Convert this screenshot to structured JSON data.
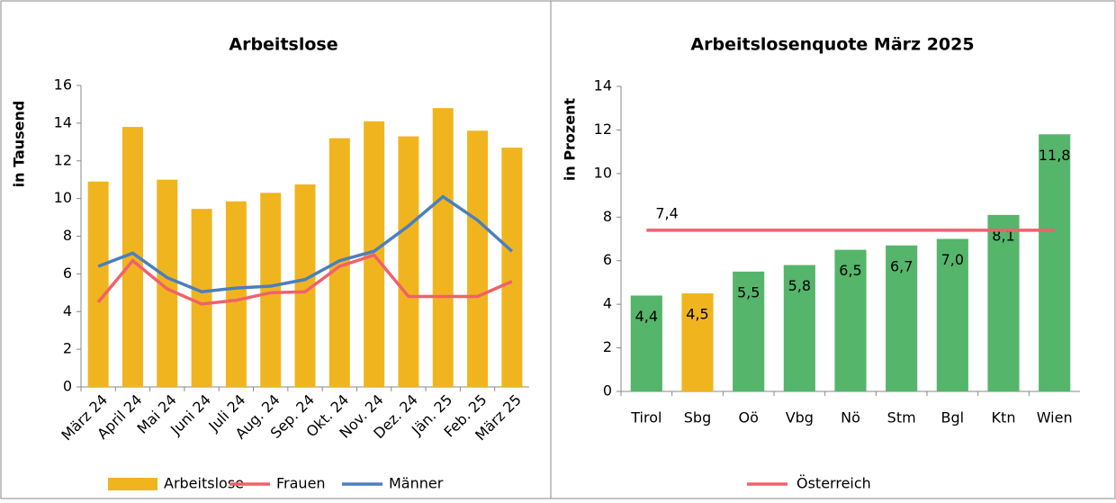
{
  "chart_data": [
    {
      "type": "bar",
      "title": "Arbeitslose",
      "y_label": "in Tausend",
      "categories": [
        "März 24",
        "April 24",
        "Mai 24",
        "Juni 24",
        "Juli 24",
        "Aug. 24",
        "Sep. 24",
        "Okt. 24",
        "Nov. 24",
        "Dez. 24",
        "Jän. 25",
        "Feb. 25",
        "März 25"
      ],
      "series": [
        {
          "name": "Arbeitslose",
          "type": "bar",
          "color": "#f0b51e",
          "values": [
            10.9,
            13.8,
            11.0,
            9.45,
            9.85,
            10.3,
            10.75,
            13.2,
            14.1,
            13.3,
            14.8,
            13.6,
            12.7
          ]
        },
        {
          "name": "Frauen",
          "type": "line",
          "color": "#f0616b",
          "values": [
            4.5,
            6.7,
            5.2,
            4.4,
            4.6,
            5.0,
            5.05,
            6.4,
            7.0,
            4.8,
            4.8,
            4.8,
            5.6
          ]
        },
        {
          "name": "Männer",
          "type": "line",
          "color": "#4a7fbf",
          "values": [
            6.4,
            7.1,
            5.8,
            5.05,
            5.25,
            5.35,
            5.7,
            6.7,
            7.2,
            8.55,
            10.1,
            8.85,
            7.2
          ]
        }
      ],
      "ylim": [
        0,
        16
      ],
      "yticks": [
        0,
        2,
        4,
        6,
        8,
        10,
        12,
        14,
        16
      ],
      "legend": "bottom"
    },
    {
      "type": "bar",
      "title": "Arbeitslosenquote März 2025",
      "y_label": "in Prozent",
      "categories": [
        "Tirol",
        "Sbg",
        "Oö",
        "Vbg",
        "Nö",
        "Stm",
        "Bgl",
        "Ktn",
        "Wien"
      ],
      "values": [
        4.4,
        4.5,
        5.5,
        5.8,
        6.5,
        6.7,
        7.0,
        8.1,
        11.8
      ],
      "value_labels": [
        "4,4",
        "4,5",
        "5,5",
        "5,8",
        "6,5",
        "6,7",
        "7,0",
        "8,1",
        "11,8"
      ],
      "colors": [
        "#55b56b",
        "#f0b51e",
        "#55b56b",
        "#55b56b",
        "#55b56b",
        "#55b56b",
        "#55b56b",
        "#55b56b",
        "#55b56b"
      ],
      "reference_line": {
        "name": "Österreich",
        "value": 7.4,
        "value_label": "7,4",
        "color": "#f0616b"
      },
      "ylim": [
        0,
        14
      ],
      "yticks": [
        0,
        2,
        4,
        6,
        8,
        10,
        12,
        14
      ],
      "legend": "bottom"
    }
  ]
}
